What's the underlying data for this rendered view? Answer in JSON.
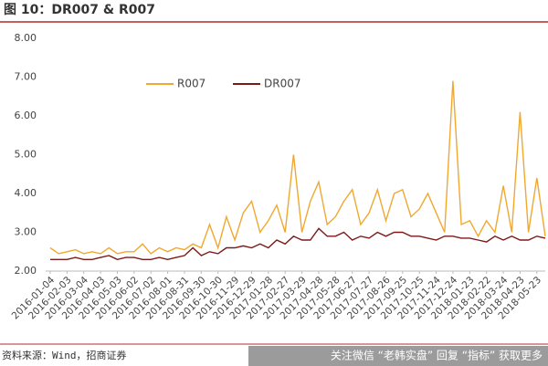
{
  "chart_data": {
    "type": "line",
    "title": "图 10：DR007 & R007",
    "source": "资料来源：Wind，招商证券",
    "watermark": "关注微信 “老韩实盘” 回复 “指标” 获取更多",
    "categories": [
      "2016-01-04",
      null,
      "2016-02-03",
      null,
      "2016-03-04",
      null,
      "2016-04-03",
      null,
      "2016-05-03",
      null,
      "2016-06-02",
      null,
      "2016-07-02",
      null,
      "2016-08-01",
      null,
      "2016-08-31",
      null,
      "2016-09-30",
      null,
      "2016-10-30",
      null,
      "2016-11-29",
      null,
      "2016-12-29",
      null,
      "2017-01-28",
      null,
      "2017-02-27",
      null,
      "2017-03-29",
      null,
      "2017-04-28",
      null,
      "2017-05-28",
      null,
      "2017-06-27",
      null,
      "2017-07-27",
      null,
      "2017-08-26",
      null,
      "2017-09-25",
      null,
      "2017-10-25",
      null,
      "2017-11-24",
      null,
      "2017-12-24",
      null,
      "2018-01-23",
      null,
      "2018-02-22",
      null,
      "2018-03-24",
      null,
      "2018-04-23",
      null,
      "2018-05-23",
      null
    ],
    "series": [
      {
        "name": "R007",
        "color": "#f0a830",
        "values": [
          2.6,
          2.45,
          2.5,
          2.55,
          2.45,
          2.5,
          2.45,
          2.6,
          2.45,
          2.5,
          2.5,
          2.7,
          2.45,
          2.6,
          2.5,
          2.6,
          2.55,
          2.7,
          2.6,
          3.2,
          2.6,
          3.4,
          2.8,
          3.5,
          3.8,
          3.0,
          3.3,
          3.7,
          3.0,
          5.0,
          3.0,
          3.8,
          4.3,
          3.2,
          3.4,
          3.8,
          4.1,
          3.2,
          3.5,
          4.1,
          3.3,
          4.0,
          4.1,
          3.4,
          3.6,
          4.0,
          3.5,
          3.0,
          6.9,
          3.2,
          3.3,
          2.9,
          3.3,
          3.0,
          4.2,
          3.0,
          6.1,
          3.0,
          4.4,
          2.9
        ]
      },
      {
        "name": "DR007",
        "color": "#7b1a1a",
        "values": [
          2.3,
          2.3,
          2.3,
          2.35,
          2.3,
          2.3,
          2.35,
          2.4,
          2.3,
          2.35,
          2.35,
          2.3,
          2.3,
          2.35,
          2.3,
          2.35,
          2.4,
          2.6,
          2.4,
          2.5,
          2.45,
          2.6,
          2.6,
          2.65,
          2.6,
          2.7,
          2.6,
          2.8,
          2.7,
          2.9,
          2.8,
          2.8,
          3.1,
          2.9,
          2.9,
          3.0,
          2.8,
          2.9,
          2.85,
          3.0,
          2.9,
          3.0,
          3.0,
          2.9,
          2.9,
          2.85,
          2.8,
          2.9,
          2.9,
          2.85,
          2.85,
          2.8,
          2.75,
          2.9,
          2.8,
          2.9,
          2.8,
          2.8,
          2.9,
          2.85
        ]
      }
    ],
    "ylim": [
      2,
      8
    ],
    "yticks": [
      {
        "value": 2,
        "label": "2.00"
      },
      {
        "value": 3,
        "label": "3.00"
      },
      {
        "value": 4,
        "label": "4.00"
      },
      {
        "value": 5,
        "label": "5.00"
      },
      {
        "value": 6,
        "label": "6.00"
      },
      {
        "value": 7,
        "label": "7.00"
      },
      {
        "value": 8,
        "label": "8.00"
      }
    ],
    "grid": false
  }
}
